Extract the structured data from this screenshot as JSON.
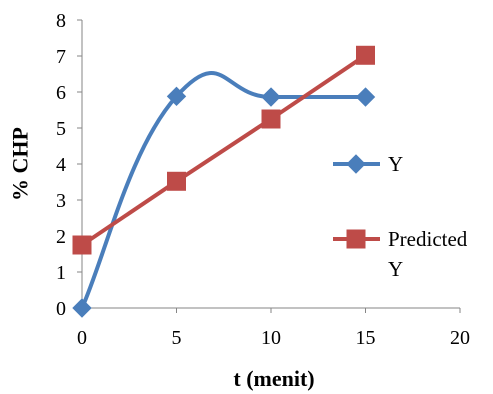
{
  "chart_data": {
    "type": "line",
    "xlabel": "t (menit)",
    "ylabel": "% CHP",
    "xlim": [
      0,
      20
    ],
    "ylim": [
      0,
      8
    ],
    "xticks": [
      "0",
      "5",
      "10",
      "15",
      "20"
    ],
    "yticks": [
      "0",
      "1",
      "2",
      "3",
      "4",
      "5",
      "6",
      "7",
      "8"
    ],
    "grid": false,
    "legend_position": "right",
    "series": [
      {
        "name": "Y",
        "color": "#4a7ebb",
        "marker": "diamond",
        "smooth": true,
        "x": [
          0,
          5,
          10,
          15
        ],
        "y": [
          0,
          5.88,
          5.86,
          5.86
        ]
      },
      {
        "name": "Predicted Y",
        "name_lines": [
          "Predicted",
          "Y"
        ],
        "color": "#be4b48",
        "marker": "square",
        "smooth": false,
        "x": [
          0,
          5,
          10,
          15
        ],
        "y": [
          1.75,
          3.52,
          5.25,
          7.02
        ]
      }
    ]
  }
}
